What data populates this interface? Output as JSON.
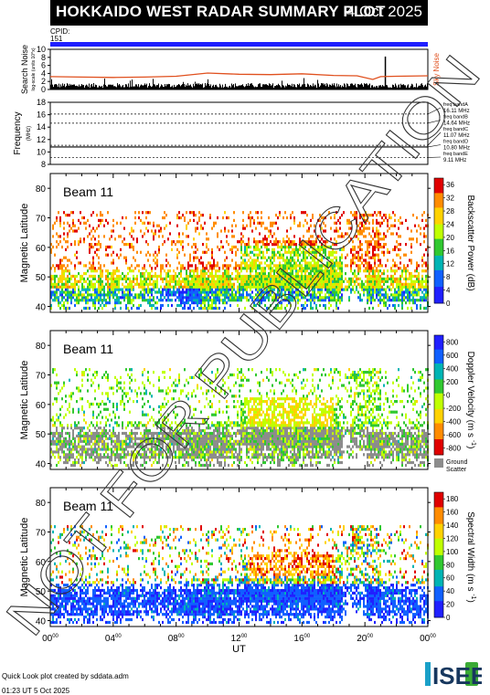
{
  "header": {
    "title": "HOKKAIDO WEST RADAR SUMMARY PLOT",
    "date": "4 Oct 2025"
  },
  "cpid": {
    "label": "CPID:",
    "value": "151"
  },
  "watermark": "NOT FOR PUBLICATION",
  "footer": {
    "line1": "Quick Look plot created by sddata.adm",
    "line2": "01:23 UT  5 Oct 2025"
  },
  "logo": {
    "text": "ISEE",
    "accent": "#1aa0c8",
    "green": "#3aaa35"
  },
  "colors": {
    "noise_line": "#e0501e",
    "header_bg": "#000000",
    "cpid_bar": "#1f1fff",
    "ground_scatter": "#8c8c8c"
  },
  "chart_data": [
    {
      "type": "line",
      "panel": "search-noise",
      "ylabel": "Search Noise",
      "ylabel_sub": "log-scale (units 10^x)",
      "ylim": [
        0,
        10
      ],
      "yticks": [
        0,
        2,
        4,
        6,
        8,
        10
      ],
      "series": [
        {
          "name": "Sky Noise",
          "x": [
            0,
            2,
            4,
            6,
            8,
            10,
            12,
            14,
            16,
            18,
            19.5,
            20.5,
            21,
            22,
            24
          ],
          "values": [
            3.2,
            3.1,
            3.0,
            3.1,
            3.3,
            4.1,
            3.8,
            3.7,
            3.9,
            3.5,
            3.4,
            2.5,
            3.2,
            3.3,
            3.4
          ]
        }
      ]
    },
    {
      "type": "line",
      "panel": "frequency",
      "ylabel": "Frequency",
      "yunit": "(MHz)",
      "ylim": [
        8,
        18
      ],
      "yticks": [
        8,
        10,
        12,
        14,
        16,
        18
      ],
      "bands": [
        {
          "name": "freq bandA",
          "value": "16.11 MHz",
          "mhz": 16.11
        },
        {
          "name": "freq bandB",
          "value": "14.64 MHz",
          "mhz": 14.64
        },
        {
          "name": "freq bandC",
          "value": "11.07 MHz",
          "mhz": 11.07
        },
        {
          "name": "freq bandD",
          "value": "10.80 MHz",
          "mhz": 10.8
        },
        {
          "name": "freq bandE",
          "value": "9.11 MHz",
          "mhz": 9.11
        }
      ],
      "operating_mhz": 10.8
    },
    {
      "type": "heatmap",
      "panel": "power",
      "beam": "Beam 11",
      "ylabel": "Magnetic Latitude",
      "ylim": [
        38,
        85
      ],
      "yticks": [
        40,
        50,
        60,
        70,
        80
      ],
      "colorbar_label": "Backscatter Power (dB)",
      "colorbar_ticks": [
        "0",
        "4",
        "8",
        "12",
        "16",
        "20",
        "24",
        "28",
        "32",
        "36"
      ],
      "colorbar_range": [
        0,
        38
      ],
      "colorbar_colors": [
        "#e00000",
        "#ff8c00",
        "#ffd200",
        "#c0ff00",
        "#30c830",
        "#00b4b4",
        "#1060ff",
        "#2020ff"
      ]
    },
    {
      "type": "heatmap",
      "panel": "velocity",
      "beam": "Beam 11",
      "ylabel": "Magnetic Latitude",
      "ylim": [
        38,
        85
      ],
      "yticks": [
        40,
        50,
        60,
        70,
        80
      ],
      "colorbar_label": "Doppler Velocity (m s",
      "colorbar_label_sup": "-1",
      "colorbar_label_end": ")",
      "colorbar_ticks": [
        "800",
        "600",
        "400",
        "200",
        "0",
        "-200",
        "-400",
        "-600",
        "-800"
      ],
      "colorbar_range": [
        900,
        -900
      ],
      "colorbar_colors": [
        "#2020ff",
        "#1060ff",
        "#00b4b4",
        "#30c830",
        "#c0ff00",
        "#ffd200",
        "#ff8c00",
        "#e00000"
      ],
      "ground_scatter_label": [
        "Ground",
        "Scatter"
      ]
    },
    {
      "type": "heatmap",
      "panel": "width",
      "beam": "Beam 11",
      "ylabel": "Magnetic Latitude",
      "ylim": [
        38,
        85
      ],
      "yticks": [
        40,
        50,
        60,
        70,
        80
      ],
      "colorbar_label": "Spectral Width (m s",
      "colorbar_label_sup": "-1",
      "colorbar_label_end": ")",
      "colorbar_ticks": [
        "0",
        "20",
        "40",
        "60",
        "80",
        "100",
        "120",
        "140",
        "160",
        "180"
      ],
      "colorbar_range": [
        0,
        190
      ],
      "colorbar_colors": [
        "#2020ff",
        "#1060ff",
        "#00b4b4",
        "#30c830",
        "#c0ff00",
        "#ffd200",
        "#ff8c00",
        "#e00000"
      ],
      "xlabel": "UT",
      "xticks": [
        {
          "h": "00",
          "m": "00",
          "v": 0
        },
        {
          "h": "04",
          "m": "00",
          "v": 4
        },
        {
          "h": "08",
          "m": "00",
          "v": 8
        },
        {
          "h": "12",
          "m": "00",
          "v": 12
        },
        {
          "h": "16",
          "m": "00",
          "v": 16
        },
        {
          "h": "20",
          "m": "00",
          "v": 20
        },
        {
          "h": "00",
          "m": "00",
          "v": 24
        }
      ]
    }
  ]
}
